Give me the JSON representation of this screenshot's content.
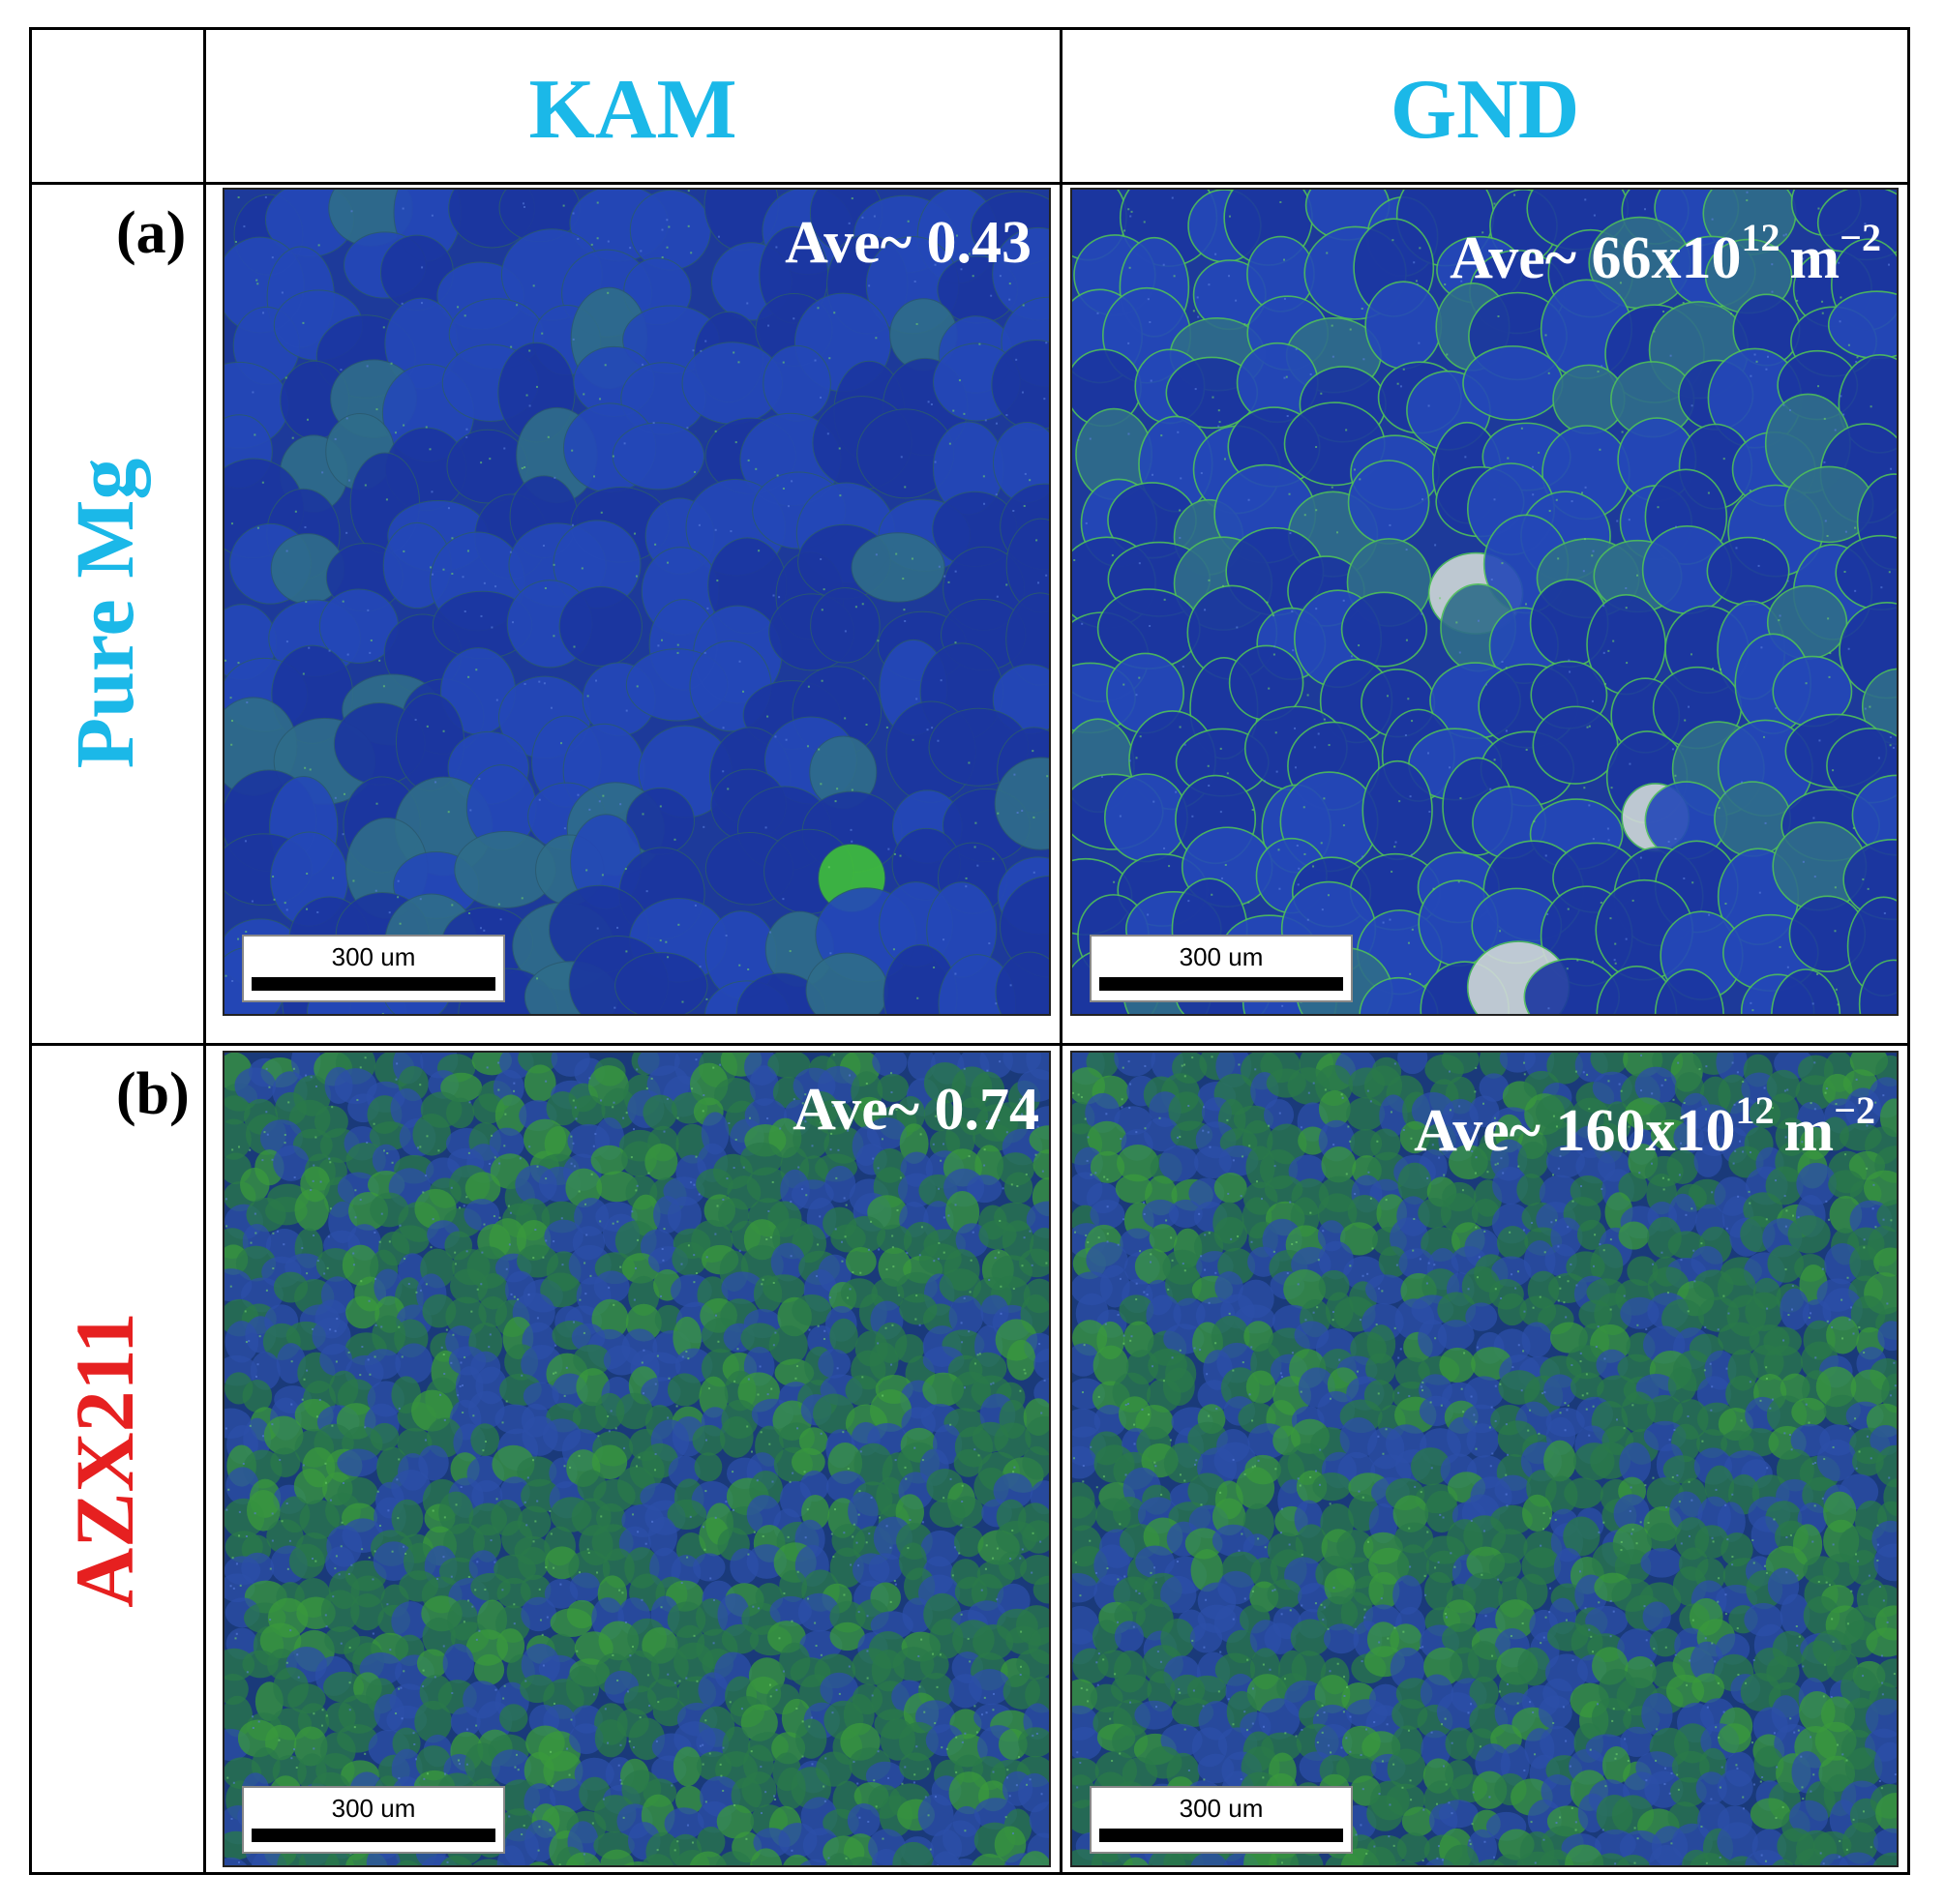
{
  "columns": {
    "kam": "KAM",
    "gnd": "GND"
  },
  "rows": [
    {
      "tag": "(a)",
      "label": "Pure Mg",
      "label_color": "#1bb8e8",
      "kam": {
        "prefix": "Ave~ ",
        "value": "0.43"
      },
      "gnd": {
        "prefix": "Ave~ ",
        "mantissa": "66x10",
        "exponent": "12",
        "unit": "m",
        "unit_exp": "−2"
      }
    },
    {
      "tag": "(b)",
      "label": "AZX211",
      "label_color": "#e62020",
      "kam": {
        "prefix": "Ave~ ",
        "value": "0.74"
      },
      "gnd": {
        "prefix": "Ave~ ",
        "mantissa": "160x10",
        "exponent": "12",
        "unit": "m",
        "unit_exp": "−2"
      }
    }
  ],
  "scale_bar": "300 um",
  "colors": {
    "header": "#1bb8e8",
    "map_blue": "#1f3fae",
    "map_green": "#3fa83a"
  }
}
